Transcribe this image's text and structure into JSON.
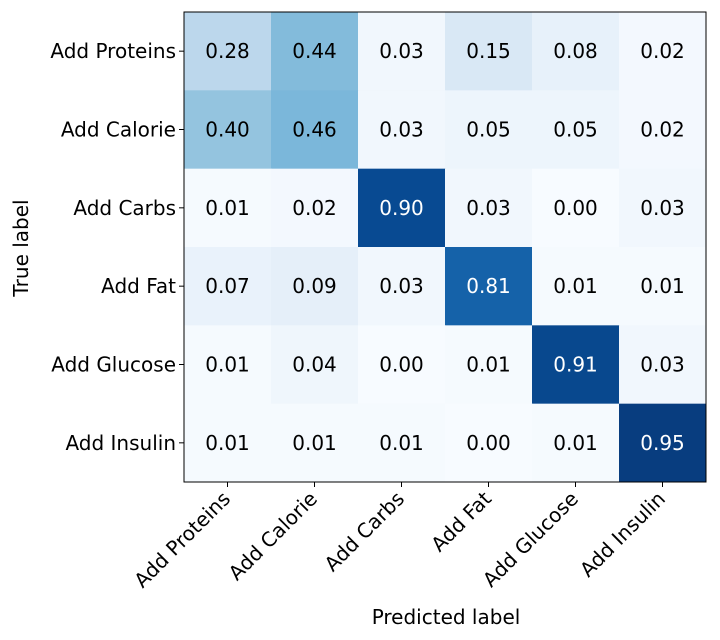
{
  "chart_data": {
    "type": "heatmap",
    "title": "",
    "xlabel": "Predicted label",
    "ylabel": "True label",
    "x_categories": [
      "Add Proteins",
      "Add Calorie",
      "Add Carbs",
      "Add Fat",
      "Add Glucose",
      "Add Insulin"
    ],
    "y_categories": [
      "Add Proteins",
      "Add Calorie",
      "Add Carbs",
      "Add Fat",
      "Add Glucose",
      "Add Insulin"
    ],
    "values": [
      [
        0.28,
        0.44,
        0.03,
        0.15,
        0.08,
        0.02
      ],
      [
        0.4,
        0.46,
        0.03,
        0.05,
        0.05,
        0.02
      ],
      [
        0.01,
        0.02,
        0.9,
        0.03,
        0.0,
        0.03
      ],
      [
        0.07,
        0.09,
        0.03,
        0.81,
        0.01,
        0.01
      ],
      [
        0.01,
        0.04,
        0.0,
        0.01,
        0.91,
        0.03
      ],
      [
        0.01,
        0.01,
        0.01,
        0.0,
        0.01,
        0.95
      ]
    ],
    "value_range": [
      0,
      1
    ],
    "colormap": "Blues",
    "grid": false,
    "legend": "none"
  }
}
